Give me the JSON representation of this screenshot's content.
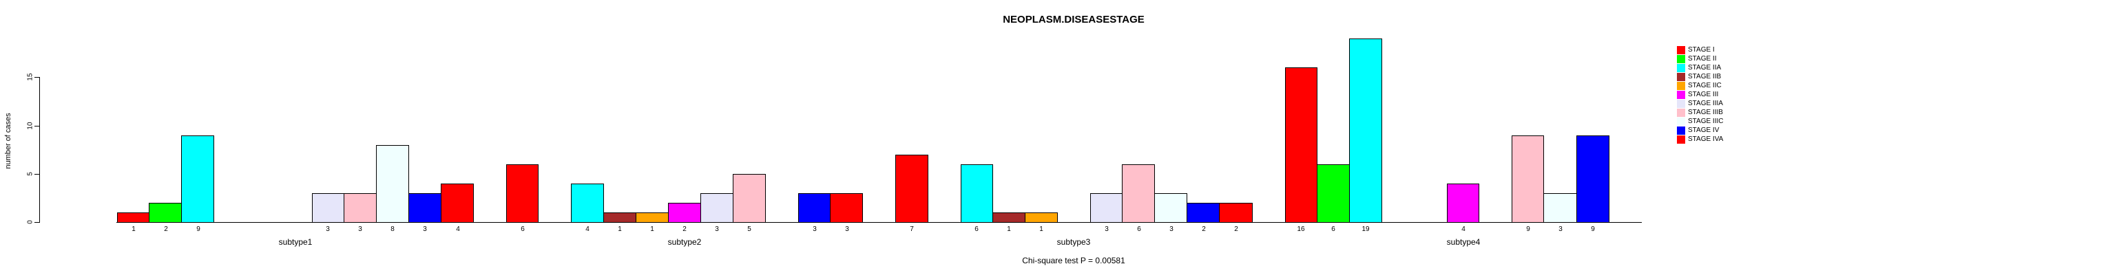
{
  "chart": {
    "title": "NEOPLASM.DISEASESTAGE",
    "ylabel": "number of cases",
    "caption": "Chi-square test P = 0.00581"
  },
  "chart_data": {
    "type": "bar",
    "title": "NEOPLASM.DISEASESTAGE",
    "xlabel": "",
    "ylabel": "number of cases",
    "ylim": [
      0,
      19
    ],
    "y_ticks": [
      0,
      5,
      10,
      15
    ],
    "grid": false,
    "legend_position": "right",
    "annotation": "Chi-square test P = 0.00581",
    "bar_value_labels_shown": true,
    "stages": [
      "STAGE I",
      "STAGE II",
      "STAGE IIA",
      "STAGE IIB",
      "STAGE IIC",
      "STAGE III",
      "STAGE IIIA",
      "STAGE IIIB",
      "STAGE IIIC",
      "STAGE IV",
      "STAGE IVA"
    ],
    "stage_colors": [
      "#FF0000",
      "#00FF00",
      "#00FFFF",
      "#A52A2A",
      "#FFA500",
      "#FF00FF",
      "#E6E6FA",
      "#FFC0CB",
      "#F0FFFF",
      "#0000FF",
      "#FF0000"
    ],
    "groups": [
      {
        "label": "subtype1",
        "values": [
          1,
          2,
          9,
          0,
          0,
          0,
          3,
          3,
          8,
          3,
          4
        ]
      },
      {
        "label": "subtype2",
        "values": [
          6,
          0,
          4,
          1,
          1,
          2,
          3,
          5,
          0,
          3,
          3
        ]
      },
      {
        "label": "subtype3",
        "values": [
          7,
          0,
          6,
          1,
          1,
          0,
          3,
          6,
          3,
          2,
          2
        ]
      },
      {
        "label": "subtype4",
        "values": [
          16,
          6,
          19,
          0,
          0,
          4,
          0,
          9,
          3,
          9,
          0
        ]
      }
    ]
  },
  "legend": {
    "entries": [
      {
        "label": "STAGE I",
        "color": "#FF0000"
      },
      {
        "label": "STAGE II",
        "color": "#00FF00"
      },
      {
        "label": "STAGE IIA",
        "color": "#00FFFF"
      },
      {
        "label": "STAGE IIB",
        "color": "#A52A2A"
      },
      {
        "label": "STAGE IIC",
        "color": "#FFA500"
      },
      {
        "label": "STAGE III",
        "color": "#FF00FF"
      },
      {
        "label": "STAGE IIIA",
        "color": "#E6E6FA"
      },
      {
        "label": "STAGE IIIB",
        "color": "#FFC0CB"
      },
      {
        "label": "STAGE IIIC",
        "color": "#F0FFFF"
      },
      {
        "label": "STAGE IV",
        "color": "#0000FF"
      },
      {
        "label": "STAGE IVA",
        "color": "#FF0000"
      }
    ]
  }
}
